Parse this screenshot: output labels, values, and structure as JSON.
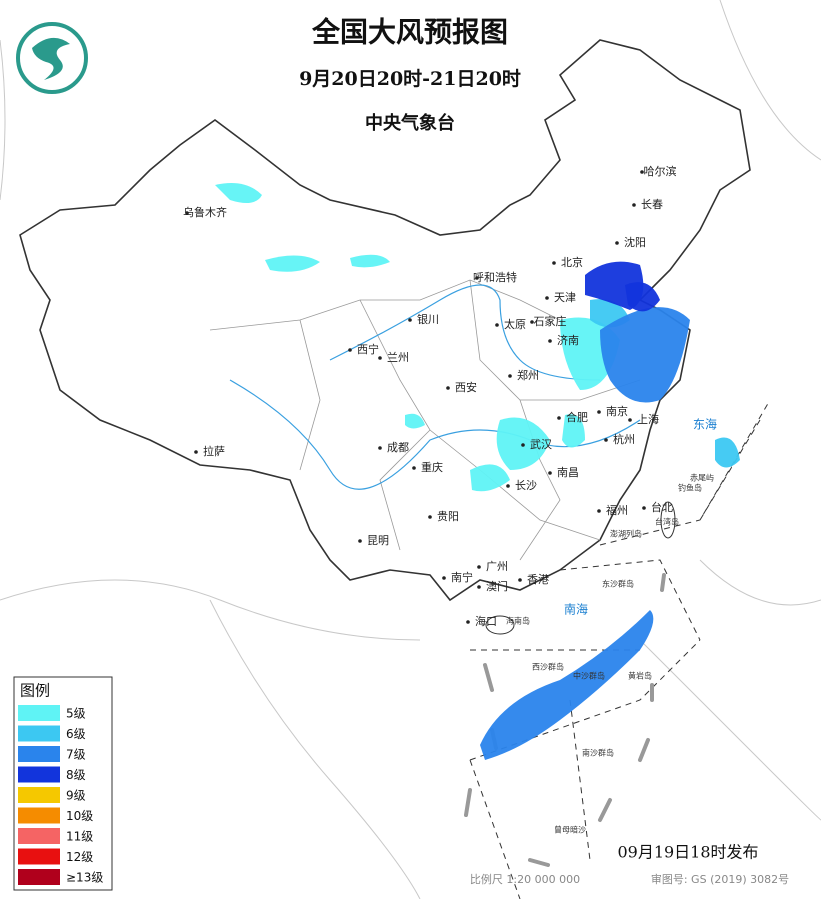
{
  "header": {
    "title": "全国大风预报图",
    "period": "9月20日20时-21日20时",
    "agency": "中央气象台"
  },
  "legend": {
    "title": "图例",
    "items": [
      {
        "label": "5级",
        "color": "#5ff3f5"
      },
      {
        "label": "6级",
        "color": "#3cc8f2"
      },
      {
        "label": "7级",
        "color": "#2a84ec"
      },
      {
        "label": "8级",
        "color": "#1234dc"
      },
      {
        "label": "9级",
        "color": "#f5c800"
      },
      {
        "label": "10级",
        "color": "#f58c00"
      },
      {
        "label": "11级",
        "color": "#f56464"
      },
      {
        "label": "12级",
        "color": "#e81010"
      },
      {
        "label": "≥13级",
        "color": "#b0001c"
      }
    ]
  },
  "cities": [
    "乌鲁木齐",
    "哈尔滨",
    "长春",
    "沈阳",
    "呼和浩特",
    "北京",
    "天津",
    "银川",
    "太原",
    "石家庄",
    "济南",
    "西宁",
    "兰州",
    "郑州",
    "西安",
    "拉萨",
    "成都",
    "重庆",
    "武汉",
    "合肥",
    "南京",
    "上海",
    "杭州",
    "长沙",
    "南昌",
    "贵阳",
    "福州",
    "台北",
    "昆明",
    "南宁",
    "广州",
    "澳门",
    "香港",
    "海口"
  ],
  "seas": [
    "东海",
    "南海"
  ],
  "islands": [
    "赤尾屿",
    "钓鱼岛",
    "台湾岛",
    "澎湖列岛",
    "东沙群岛",
    "海南岛",
    "西沙群岛",
    "中沙群岛",
    "黄岩岛",
    "南沙群岛",
    "曾母暗沙"
  ],
  "footer": {
    "issued": "09月19日18时发布",
    "scale": "比例尺 1:20 000 000",
    "review": "审图号: GS (2019) 3082号"
  }
}
